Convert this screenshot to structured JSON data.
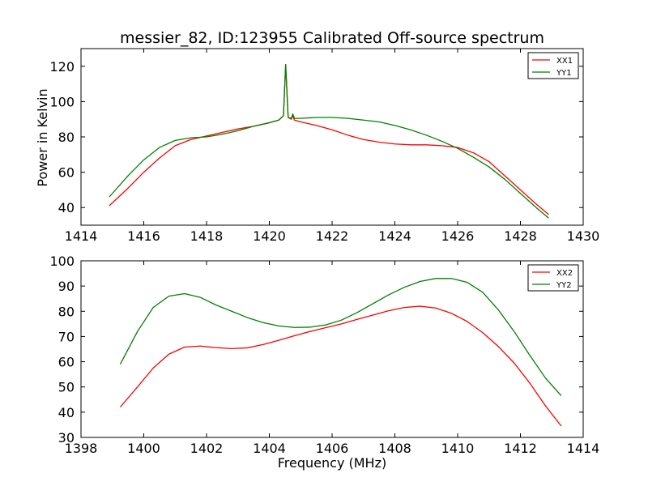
{
  "figure": {
    "title": "messier_82, ID:123955 Calibrated Off-source spectrum",
    "ylabel_top": "Power in Kelvin",
    "xlabel_bottom": "Frequency (MHz)"
  },
  "chart_data": [
    {
      "type": "line",
      "title": "messier_82, ID:123955 Calibrated Off-source spectrum",
      "xlabel": "",
      "ylabel": "Power in Kelvin",
      "xlim": [
        1414,
        1430
      ],
      "ylim": [
        30,
        130
      ],
      "xticks": [
        1414,
        1416,
        1418,
        1420,
        1422,
        1424,
        1426,
        1428,
        1430
      ],
      "yticks": [
        40,
        60,
        80,
        100,
        120
      ],
      "legend": "top-right",
      "grid": false,
      "series": [
        {
          "name": "XX1",
          "color": "#ff0000",
          "x": [
            1414.9,
            1415.5,
            1416.0,
            1416.5,
            1417.0,
            1417.5,
            1418.0,
            1418.5,
            1419.0,
            1419.5,
            1420.0,
            1420.3,
            1420.45,
            1420.52,
            1420.6,
            1420.7,
            1420.75,
            1420.8,
            1421.0,
            1421.5,
            1422.0,
            1422.5,
            1423.0,
            1423.5,
            1424.0,
            1424.5,
            1425.0,
            1425.5,
            1426.0,
            1426.5,
            1427.0,
            1427.5,
            1428.0,
            1428.5,
            1428.9
          ],
          "y": [
            41,
            51,
            60,
            68,
            75,
            78.5,
            80.5,
            82.5,
            84.5,
            86,
            88,
            89.5,
            92,
            121,
            91,
            90,
            92,
            89.5,
            88.5,
            86.5,
            84,
            81,
            78.5,
            77,
            76,
            75.5,
            75.5,
            75,
            74,
            71,
            66,
            58,
            50,
            42,
            36
          ]
        },
        {
          "name": "YY1",
          "color": "#008000",
          "x": [
            1414.9,
            1415.5,
            1416.0,
            1416.5,
            1417.0,
            1417.5,
            1418.0,
            1418.5,
            1419.0,
            1419.5,
            1420.0,
            1420.3,
            1420.45,
            1420.52,
            1420.6,
            1420.7,
            1420.75,
            1420.8,
            1421.0,
            1421.5,
            1422.0,
            1422.5,
            1423.0,
            1423.5,
            1424.0,
            1424.5,
            1425.0,
            1425.5,
            1426.0,
            1426.5,
            1427.0,
            1427.5,
            1428.0,
            1428.5,
            1428.9
          ],
          "y": [
            46,
            58,
            67,
            74,
            78,
            79.5,
            80,
            81.5,
            83.5,
            86,
            88,
            89.5,
            92,
            121,
            91,
            90.5,
            93,
            90.5,
            90.5,
            91,
            91,
            90.5,
            89.5,
            88.5,
            86.5,
            84,
            81,
            77.5,
            73.5,
            68.5,
            63,
            56,
            48,
            40,
            34
          ]
        }
      ]
    },
    {
      "type": "line",
      "title": "",
      "xlabel": "Frequency (MHz)",
      "ylabel": "",
      "xlim": [
        1398,
        1414
      ],
      "ylim": [
        30,
        100
      ],
      "xticks": [
        1398,
        1400,
        1402,
        1404,
        1406,
        1408,
        1410,
        1412,
        1414
      ],
      "yticks": [
        30,
        40,
        50,
        60,
        70,
        80,
        90,
        100
      ],
      "legend": "top-right",
      "grid": false,
      "series": [
        {
          "name": "XX2",
          "color": "#ff0000",
          "x": [
            1399.25,
            1399.8,
            1400.3,
            1400.8,
            1401.3,
            1401.8,
            1402.3,
            1402.8,
            1403.3,
            1403.8,
            1404.3,
            1404.8,
            1405.3,
            1405.8,
            1406.3,
            1406.8,
            1407.3,
            1407.8,
            1408.3,
            1408.8,
            1409.3,
            1409.8,
            1410.3,
            1410.8,
            1411.3,
            1411.8,
            1412.3,
            1412.8,
            1413.3
          ],
          "y": [
            42,
            50,
            57.5,
            63,
            65.8,
            66.2,
            65.6,
            65.2,
            65.5,
            66.8,
            68.5,
            70.3,
            72,
            73.5,
            75,
            76.8,
            78.5,
            80.2,
            81.5,
            82,
            81.3,
            79.2,
            76,
            71.5,
            66,
            59.5,
            51.5,
            42.5,
            34.5
          ]
        },
        {
          "name": "YY2",
          "color": "#008000",
          "x": [
            1399.25,
            1399.8,
            1400.3,
            1400.8,
            1401.3,
            1401.8,
            1402.3,
            1402.8,
            1403.3,
            1403.8,
            1404.3,
            1404.8,
            1405.3,
            1405.8,
            1406.3,
            1406.8,
            1407.3,
            1407.8,
            1408.3,
            1408.8,
            1409.3,
            1409.8,
            1410.3,
            1410.8,
            1411.3,
            1411.8,
            1412.3,
            1412.8,
            1413.3
          ],
          "y": [
            59,
            72,
            81.5,
            86,
            87,
            85.5,
            82.5,
            80,
            77.5,
            75.5,
            74.2,
            73.6,
            73.7,
            74.6,
            76.5,
            79.5,
            83,
            86.5,
            89.5,
            91.8,
            93,
            93,
            91.5,
            87.5,
            80.5,
            72,
            62.5,
            53.5,
            46.5
          ]
        }
      ]
    }
  ]
}
